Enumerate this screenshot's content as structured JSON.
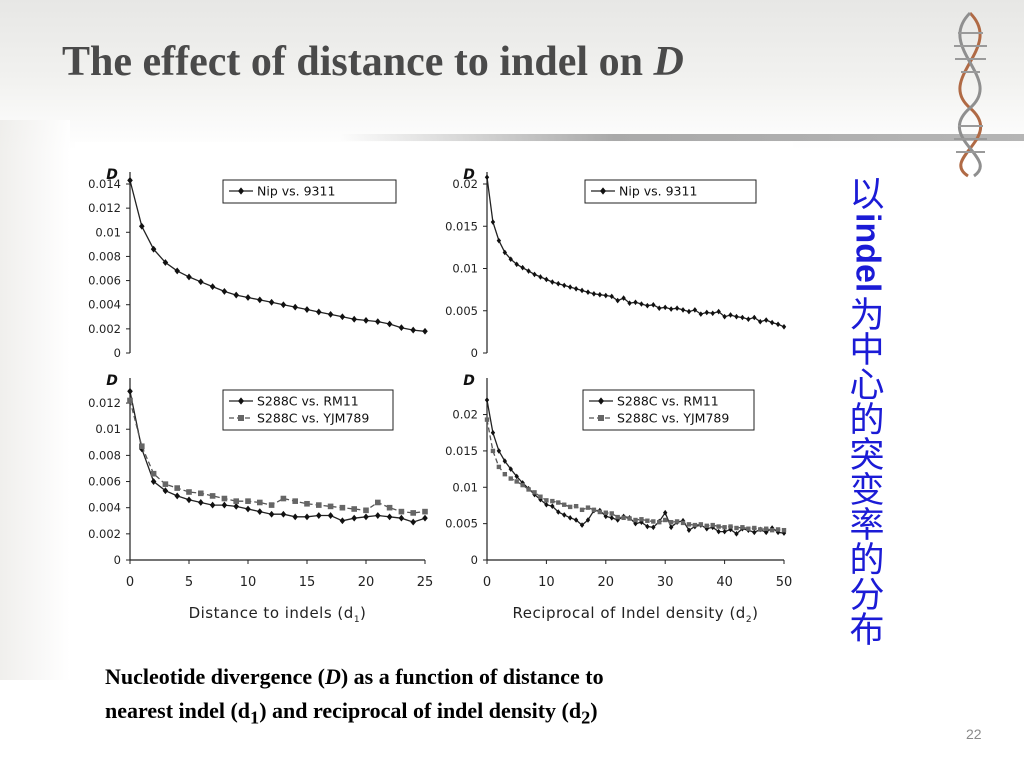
{
  "slide": {
    "title_text": "The effect of  distance to indel on ",
    "title_var": "D",
    "page_number": "22",
    "side_text": {
      "part1": "以",
      "part2": "indel",
      "part3": "为中心的突变率的分布"
    },
    "caption": {
      "t1": "Nucleotide divergence (",
      "var": "D",
      "t2": ") as a function of distance to",
      "t3": "nearest indel (d",
      "sub1": "1",
      "t4": ") and reciprocal of indel density (d",
      "sub2": "2",
      "t5": ")"
    },
    "colors": {
      "side_text": "#1b1bd6",
      "title": "#4a4a4a",
      "series_solid": "#222222",
      "series_dashed": "#444444"
    }
  },
  "chart_data": [
    {
      "type": "line",
      "ylabel": "D",
      "xlabel": "",
      "xlim": [
        0,
        25
      ],
      "ylim": [
        0,
        0.014
      ],
      "yticks": [
        "0",
        "0.002",
        "0.004",
        "0.006",
        "0.008",
        "0.01",
        "0.012",
        "0.014"
      ],
      "xticks": [],
      "series": [
        {
          "name": "Nip vs. 9311",
          "marker": "diamond",
          "dashed": false,
          "x": [
            0,
            1,
            2,
            3,
            4,
            5,
            6,
            7,
            8,
            9,
            10,
            11,
            12,
            13,
            14,
            15,
            16,
            17,
            18,
            19,
            20,
            21,
            22,
            23,
            24,
            25
          ],
          "values": [
            0.0143,
            0.0105,
            0.0086,
            0.0075,
            0.0068,
            0.0063,
            0.0059,
            0.0055,
            0.0051,
            0.0048,
            0.0046,
            0.0044,
            0.0042,
            0.004,
            0.0038,
            0.0036,
            0.0034,
            0.0032,
            0.003,
            0.0028,
            0.0027,
            0.0026,
            0.0024,
            0.0021,
            0.0019,
            0.0018
          ]
        }
      ]
    },
    {
      "type": "line",
      "ylabel": "D",
      "xlabel": "",
      "xlim": [
        0,
        50
      ],
      "ylim": [
        0,
        0.02
      ],
      "yticks": [
        "0",
        "0.005",
        "0.01",
        "0.015",
        "0.02"
      ],
      "xticks": [],
      "series": [
        {
          "name": "Nip vs. 9311",
          "marker": "diamond",
          "dashed": false,
          "x": [
            0,
            1,
            2,
            3,
            4,
            5,
            6,
            7,
            8,
            9,
            10,
            11,
            12,
            13,
            14,
            15,
            16,
            17,
            18,
            19,
            20,
            21,
            22,
            23,
            24,
            25,
            26,
            27,
            28,
            29,
            30,
            31,
            32,
            33,
            34,
            35,
            36,
            37,
            38,
            39,
            40,
            41,
            42,
            43,
            44,
            45,
            46,
            47,
            48,
            49,
            50
          ],
          "values": [
            0.0208,
            0.0155,
            0.0133,
            0.0119,
            0.0111,
            0.0105,
            0.0101,
            0.0097,
            0.0093,
            0.009,
            0.0087,
            0.0084,
            0.0082,
            0.008,
            0.0078,
            0.0076,
            0.0074,
            0.0072,
            0.007,
            0.0069,
            0.0068,
            0.0067,
            0.0062,
            0.0065,
            0.0059,
            0.006,
            0.0058,
            0.0056,
            0.0057,
            0.0053,
            0.0054,
            0.0052,
            0.0053,
            0.0051,
            0.0049,
            0.0051,
            0.0046,
            0.0048,
            0.0047,
            0.0049,
            0.0043,
            0.0045,
            0.0043,
            0.0042,
            0.004,
            0.0042,
            0.0037,
            0.0039,
            0.0036,
            0.0034,
            0.0031
          ]
        }
      ]
    },
    {
      "type": "line",
      "ylabel": "D",
      "xlabel": "Distance to indels (d1)",
      "xlim": [
        0,
        25
      ],
      "ylim": [
        0,
        0.013
      ],
      "yticks": [
        "0",
        "0.002",
        "0.004",
        "0.006",
        "0.008",
        "0.01",
        "0.012"
      ],
      "xticks": [
        "0",
        "5",
        "10",
        "15",
        "20",
        "25"
      ],
      "series": [
        {
          "name": "S288C vs. RM11",
          "marker": "diamond",
          "dashed": false,
          "x": [
            0,
            1,
            2,
            3,
            4,
            5,
            6,
            7,
            8,
            9,
            10,
            11,
            12,
            13,
            14,
            15,
            16,
            17,
            18,
            19,
            20,
            21,
            22,
            23,
            24,
            25
          ],
          "values": [
            0.0129,
            0.0085,
            0.006,
            0.0053,
            0.0049,
            0.0046,
            0.0044,
            0.0042,
            0.0042,
            0.0041,
            0.0039,
            0.0037,
            0.0035,
            0.0035,
            0.0033,
            0.0033,
            0.0034,
            0.0034,
            0.003,
            0.0032,
            0.0033,
            0.0034,
            0.0033,
            0.0032,
            0.0029,
            0.0032
          ]
        },
        {
          "name": "S288C vs. YJM789",
          "marker": "square",
          "dashed": true,
          "x": [
            0,
            1,
            2,
            3,
            4,
            5,
            6,
            7,
            8,
            9,
            10,
            11,
            12,
            13,
            14,
            15,
            16,
            17,
            18,
            19,
            20,
            21,
            22,
            23,
            24,
            25
          ],
          "values": [
            0.0122,
            0.0087,
            0.0066,
            0.0058,
            0.0055,
            0.0052,
            0.0051,
            0.0049,
            0.0047,
            0.0045,
            0.0045,
            0.0044,
            0.0042,
            0.0047,
            0.0045,
            0.0043,
            0.0042,
            0.0041,
            0.004,
            0.0039,
            0.0038,
            0.0044,
            0.004,
            0.0037,
            0.0036,
            0.0037
          ]
        }
      ]
    },
    {
      "type": "line",
      "ylabel": "D",
      "xlabel": "Reciprocal of Indel density (d2)",
      "xlim": [
        0,
        50
      ],
      "ylim": [
        0,
        0.022
      ],
      "yticks": [
        "0",
        "0.005",
        "0.01",
        "0.015",
        "0.02"
      ],
      "xticks": [
        "0",
        "10",
        "20",
        "30",
        "40",
        "50"
      ],
      "series": [
        {
          "name": "S288C vs. RM11",
          "marker": "diamond",
          "dashed": false,
          "x": [
            0,
            1,
            2,
            3,
            4,
            5,
            6,
            7,
            8,
            9,
            10,
            11,
            12,
            13,
            14,
            15,
            16,
            17,
            18,
            19,
            20,
            21,
            22,
            23,
            24,
            25,
            26,
            27,
            28,
            29,
            30,
            31,
            32,
            33,
            34,
            35,
            36,
            37,
            38,
            39,
            40,
            41,
            42,
            43,
            44,
            45,
            46,
            47,
            48,
            49,
            50
          ],
          "values": [
            0.022,
            0.0175,
            0.015,
            0.0136,
            0.0125,
            0.0115,
            0.0106,
            0.0098,
            0.009,
            0.0083,
            0.0076,
            0.0074,
            0.0066,
            0.0062,
            0.0058,
            0.0055,
            0.0048,
            0.0055,
            0.0068,
            0.0068,
            0.006,
            0.0058,
            0.0055,
            0.006,
            0.0058,
            0.005,
            0.0052,
            0.0046,
            0.0045,
            0.0053,
            0.0065,
            0.0045,
            0.0052,
            0.0054,
            0.0041,
            0.0046,
            0.0048,
            0.0043,
            0.0045,
            0.0039,
            0.0039,
            0.0042,
            0.0036,
            0.0043,
            0.0041,
            0.0038,
            0.0042,
            0.0038,
            0.0044,
            0.0038,
            0.0037
          ]
        },
        {
          "name": "S288C vs. YJM789",
          "marker": "square",
          "dashed": true,
          "x": [
            0,
            1,
            2,
            3,
            4,
            5,
            6,
            7,
            8,
            9,
            10,
            11,
            12,
            13,
            14,
            15,
            16,
            17,
            18,
            19,
            20,
            21,
            22,
            23,
            24,
            25,
            26,
            27,
            28,
            29,
            30,
            31,
            32,
            33,
            34,
            35,
            36,
            37,
            38,
            39,
            40,
            41,
            42,
            43,
            44,
            45,
            46,
            47,
            48,
            49,
            50
          ],
          "values": [
            0.0193,
            0.015,
            0.0128,
            0.0118,
            0.0112,
            0.0108,
            0.0103,
            0.0097,
            0.0093,
            0.0087,
            0.0082,
            0.0081,
            0.0079,
            0.0076,
            0.0073,
            0.0074,
            0.0069,
            0.0072,
            0.0069,
            0.0066,
            0.0065,
            0.0064,
            0.0059,
            0.0058,
            0.0057,
            0.0055,
            0.0056,
            0.0054,
            0.0053,
            0.0052,
            0.0055,
            0.0052,
            0.0053,
            0.0051,
            0.0049,
            0.0048,
            0.0049,
            0.0047,
            0.0048,
            0.0046,
            0.0045,
            0.0046,
            0.0044,
            0.0045,
            0.0043,
            0.0044,
            0.0042,
            0.0043,
            0.0041,
            0.0042,
            0.0041
          ]
        }
      ]
    }
  ]
}
